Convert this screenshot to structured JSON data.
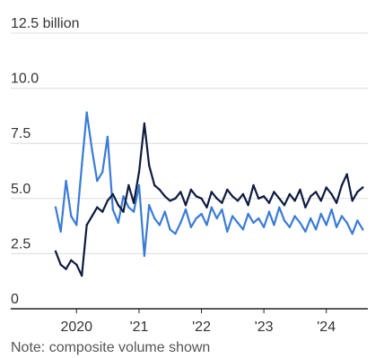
{
  "chart_data": {
    "type": "line",
    "x_unit": "date",
    "xlim": [
      "2019-09-01",
      "2024-08-31"
    ],
    "ylim": [
      0,
      12.5
    ],
    "y_ticks": [
      {
        "value": 0,
        "label": "0"
      },
      {
        "value": 2.5,
        "label": "2.5"
      },
      {
        "value": 5.0,
        "label": "5.0"
      },
      {
        "value": 7.5,
        "label": "7.5"
      },
      {
        "value": 10.0,
        "label": "10.0"
      },
      {
        "value": 12.5,
        "label": "12.5 billion"
      }
    ],
    "x_ticks": [
      {
        "date": "2020-01-01",
        "label": "2020"
      },
      {
        "date": "2021-01-01",
        "label": "'21"
      },
      {
        "date": "2022-01-01",
        "label": "'22"
      },
      {
        "date": "2023-01-01",
        "label": "'23"
      },
      {
        "date": "2024-01-01",
        "label": "'24"
      }
    ],
    "grid": "horizontal",
    "legend": "none",
    "series": [
      {
        "color": "#3a7bd5",
        "x": [
          "2019-09-01",
          "2019-10-01",
          "2019-11-01",
          "2019-12-01",
          "2020-01-01",
          "2020-02-01",
          "2020-03-01",
          "2020-04-01",
          "2020-05-01",
          "2020-06-01",
          "2020-07-01",
          "2020-08-01",
          "2020-09-01",
          "2020-10-01",
          "2020-11-01",
          "2020-12-01",
          "2021-01-01",
          "2021-02-01",
          "2021-03-01",
          "2021-04-01",
          "2021-05-01",
          "2021-06-01",
          "2021-07-01",
          "2021-08-01",
          "2021-09-01",
          "2021-10-01",
          "2021-11-01",
          "2021-12-01",
          "2022-01-01",
          "2022-02-01",
          "2022-03-01",
          "2022-04-01",
          "2022-05-01",
          "2022-06-01",
          "2022-07-01",
          "2022-08-01",
          "2022-09-01",
          "2022-10-01",
          "2022-11-01",
          "2022-12-01",
          "2023-01-01",
          "2023-02-01",
          "2023-03-01",
          "2023-04-01",
          "2023-05-01",
          "2023-06-01",
          "2023-07-01",
          "2023-08-01",
          "2023-09-01",
          "2023-10-01",
          "2023-11-01",
          "2023-12-01",
          "2024-01-01",
          "2024-02-01",
          "2024-03-01",
          "2024-04-01",
          "2024-05-01",
          "2024-06-01",
          "2024-07-01",
          "2024-08-01"
        ],
        "values": [
          4.6,
          3.5,
          5.8,
          4.2,
          3.8,
          6.5,
          8.9,
          7.2,
          5.8,
          6.2,
          7.8,
          4.5,
          3.9,
          5.1,
          4.6,
          4.4,
          5.6,
          2.4,
          4.7,
          4.1,
          3.8,
          4.4,
          3.6,
          3.4,
          3.9,
          4.5,
          3.7,
          4.1,
          4.3,
          3.8,
          4.6,
          4.1,
          4.5,
          3.5,
          4.2,
          3.9,
          3.6,
          4.3,
          3.9,
          4.1,
          3.7,
          4.4,
          3.8,
          4.6,
          4.0,
          3.7,
          4.2,
          3.9,
          3.5,
          4.1,
          3.6,
          4.3,
          3.8,
          4.5,
          3.7,
          4.2,
          3.9,
          3.4,
          4.0,
          3.6
        ]
      },
      {
        "color": "#0d1b3e",
        "x": [
          "2019-09-01",
          "2019-10-01",
          "2019-11-01",
          "2019-12-01",
          "2020-01-01",
          "2020-02-01",
          "2020-03-01",
          "2020-04-01",
          "2020-05-01",
          "2020-06-01",
          "2020-07-01",
          "2020-08-01",
          "2020-09-01",
          "2020-10-01",
          "2020-11-01",
          "2020-12-01",
          "2021-01-01",
          "2021-02-01",
          "2021-03-01",
          "2021-04-01",
          "2021-05-01",
          "2021-06-01",
          "2021-07-01",
          "2021-08-01",
          "2021-09-01",
          "2021-10-01",
          "2021-11-01",
          "2021-12-01",
          "2022-01-01",
          "2022-02-01",
          "2022-03-01",
          "2022-04-01",
          "2022-05-01",
          "2022-06-01",
          "2022-07-01",
          "2022-08-01",
          "2022-09-01",
          "2022-10-01",
          "2022-11-01",
          "2022-12-01",
          "2023-01-01",
          "2023-02-01",
          "2023-03-01",
          "2023-04-01",
          "2023-05-01",
          "2023-06-01",
          "2023-07-01",
          "2023-08-01",
          "2023-09-01",
          "2023-10-01",
          "2023-11-01",
          "2023-12-01",
          "2024-01-01",
          "2024-02-01",
          "2024-03-01",
          "2024-04-01",
          "2024-05-01",
          "2024-06-01",
          "2024-07-01",
          "2024-08-01"
        ],
        "values": [
          2.6,
          2.0,
          1.8,
          2.2,
          2.0,
          1.5,
          3.8,
          4.2,
          4.6,
          4.4,
          4.9,
          5.2,
          4.7,
          4.4,
          5.6,
          4.8,
          6.2,
          8.4,
          6.5,
          5.6,
          5.4,
          5.1,
          4.9,
          5.0,
          5.3,
          4.7,
          5.4,
          5.1,
          5.0,
          4.6,
          5.3,
          5.0,
          4.8,
          5.4,
          5.1,
          4.9,
          5.2,
          4.7,
          5.6,
          5.0,
          5.1,
          4.8,
          5.3,
          5.0,
          4.7,
          5.2,
          4.9,
          5.4,
          4.6,
          5.1,
          5.3,
          4.9,
          5.5,
          5.2,
          4.8,
          5.6,
          6.1,
          4.9,
          5.3,
          5.5
        ]
      }
    ],
    "note": "Note: composite volume shown"
  }
}
